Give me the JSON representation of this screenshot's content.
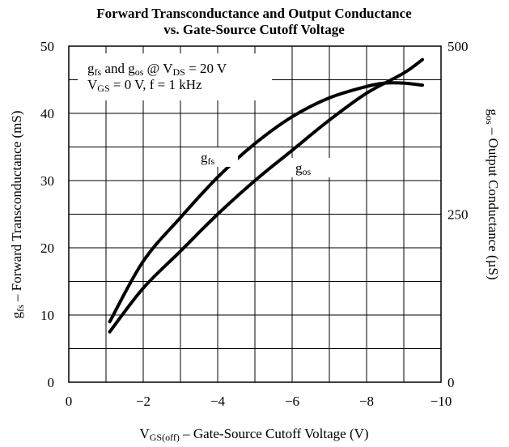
{
  "chart_data": {
    "type": "line",
    "title": [
      "Forward Transconductance and Output Conductance",
      "vs. Gate-Source Cutoff Voltage"
    ],
    "xlabel": [
      "V",
      "GS(off)",
      " – Gate-Source Cutoff Voltage (V)"
    ],
    "ylabel": [
      "g",
      "fs",
      " – Forward Transconductance (mS)"
    ],
    "y2label": [
      "g",
      "os",
      " – Output Conductance (µS)"
    ],
    "annotation": [
      [
        "g",
        "fs",
        " and g",
        "os",
        " @ V",
        "DS",
        " = 20 V"
      ],
      [
        "V",
        "GS",
        " = 0 V, f =  1 kHz"
      ]
    ],
    "xlim": [
      0,
      -10
    ],
    "xticks": [
      0,
      {
        "value": -2,
        "label": "−2"
      },
      {
        "value": -4,
        "label": "−4"
      },
      {
        "value": -6,
        "label": "−6"
      },
      {
        "value": -8,
        "label": "−8"
      },
      {
        "value": -10,
        "label": "−10"
      }
    ],
    "x_minor_ticks": [
      -1,
      -3,
      -5,
      -7,
      -9
    ],
    "ylim": [
      0,
      50
    ],
    "yticks": [
      0,
      10,
      20,
      30,
      40,
      50
    ],
    "y_minor_ticks": [
      5,
      15,
      25,
      35,
      45
    ],
    "y2lim": [
      0,
      500
    ],
    "y2ticks": [
      0,
      250,
      500
    ],
    "grid": true,
    "series": [
      {
        "name": [
          "g",
          "fs"
        ],
        "color": "#000000",
        "x": [
          -1.1,
          -2,
          -3,
          -4,
          -5,
          -6,
          -7,
          -8,
          -8.5,
          -9,
          -9.5
        ],
        "values": [
          9,
          18,
          24.5,
          30.5,
          35.5,
          39.5,
          42.3,
          44,
          44.5,
          44.5,
          44.2
        ]
      },
      {
        "name": [
          "g",
          "os"
        ],
        "color": "#000000",
        "axis": "y2",
        "x": [
          -1.1,
          -2,
          -3,
          -4,
          -5,
          -6,
          -7,
          -8,
          -9,
          -9.5
        ],
        "values": [
          75,
          140,
          195,
          250,
          300,
          345,
          390,
          430,
          460,
          480
        ]
      }
    ]
  }
}
